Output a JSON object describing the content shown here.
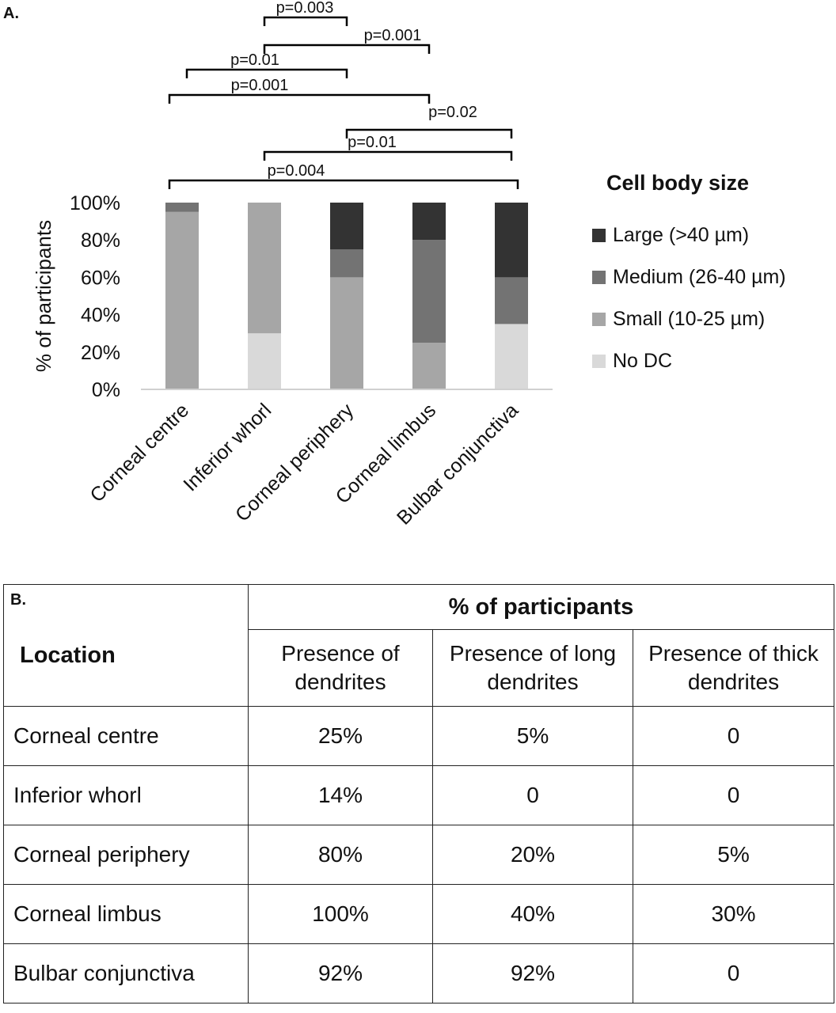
{
  "panel_a_label": "A.",
  "panel_b_label": "B.",
  "chart_data": {
    "type": "bar",
    "stacked": true,
    "ylabel": "% of participants",
    "ylim": [
      0,
      100
    ],
    "yticks": [
      "0%",
      "20%",
      "40%",
      "60%",
      "80%",
      "100%"
    ],
    "categories": [
      "Corneal centre",
      "Inferior whorl",
      "Corneal periphery",
      "Corneal limbus",
      "Bulbar conjunctiva"
    ],
    "series": [
      {
        "name": "No DC",
        "color": "#d9d9d9",
        "values": [
          0,
          30,
          0,
          0,
          35
        ]
      },
      {
        "name": "Small (10-25 µm)",
        "color": "#a6a6a6",
        "values": [
          95,
          70,
          60,
          25,
          0
        ]
      },
      {
        "name": "Medium (26-40 µm)",
        "color": "#737373",
        "values": [
          5,
          0,
          15,
          55,
          25
        ]
      },
      {
        "name": "Large (>40 µm)",
        "color": "#333333",
        "values": [
          0,
          0,
          25,
          20,
          40
        ]
      }
    ],
    "legend_title": "Cell body size",
    "legend_order": [
      "Large (>40 µm)",
      "Medium (26-40 µm)",
      "Small (10-25 µm)",
      "No DC"
    ],
    "legend_position": "right",
    "grid": false,
    "significance": [
      {
        "from": "Inferior whorl",
        "to": "Corneal periphery",
        "label": "p=0.003"
      },
      {
        "from": "Inferior whorl",
        "to": "Corneal limbus",
        "label": "p=0.001"
      },
      {
        "from": "Corneal centre",
        "to": "Corneal periphery",
        "label": "p=0.01"
      },
      {
        "from": "Corneal centre",
        "to": "Corneal limbus",
        "label": "p=0.001"
      },
      {
        "from": "Corneal periphery",
        "to": "Bulbar conjunctiva",
        "label": "p=0.02"
      },
      {
        "from": "Inferior whorl",
        "to": "Bulbar conjunctiva",
        "label": "p=0.01"
      },
      {
        "from": "Corneal centre",
        "to": "Bulbar conjunctiva",
        "label": "p=0.004"
      }
    ]
  },
  "table": {
    "group_header": "% of participants",
    "location_header": "Location",
    "columns": [
      "Presence of dendrites",
      "Presence of long dendrites",
      "Presence of thick dendrites"
    ],
    "rows": [
      {
        "location": "Corneal centre",
        "values": [
          "25%",
          "5%",
          "0"
        ]
      },
      {
        "location": "Inferior whorl",
        "values": [
          "14%",
          "0",
          "0"
        ]
      },
      {
        "location": "Corneal periphery",
        "values": [
          "80%",
          "20%",
          "5%"
        ]
      },
      {
        "location": "Corneal limbus",
        "values": [
          "100%",
          "40%",
          "30%"
        ]
      },
      {
        "location": "Bulbar conjunctiva",
        "values": [
          "92%",
          "92%",
          "0"
        ]
      }
    ]
  }
}
